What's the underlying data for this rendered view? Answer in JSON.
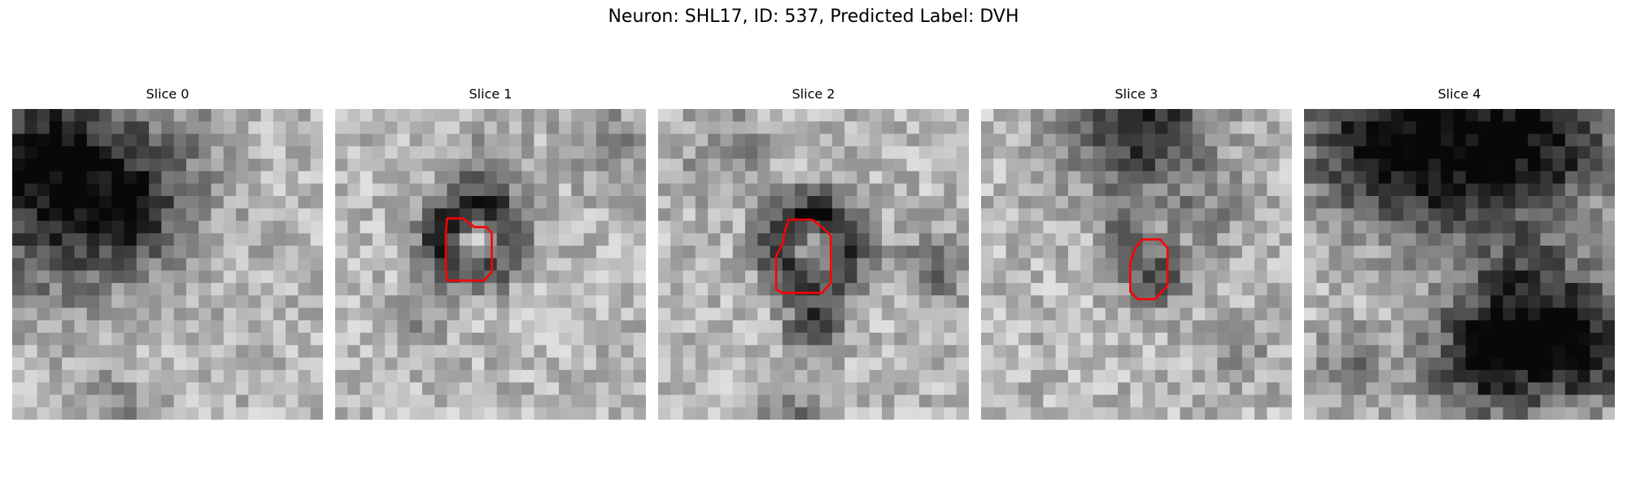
{
  "figure": {
    "title": "Neuron: SHL17, ID: 537, Predicted Label: DVH"
  },
  "grid_size": 25,
  "contour_color": "#ff0000",
  "panels": [
    {
      "title": "Slice 0",
      "blobs": [
        {
          "cx": 4,
          "cy": 7,
          "r": 5.5,
          "amp": -0.55
        },
        {
          "cx": 9,
          "cy": 8,
          "r": 2.0,
          "amp": -0.35
        },
        {
          "cx": 2,
          "cy": 2,
          "r": 4.0,
          "amp": -0.35
        },
        {
          "cx": 12,
          "cy": 4,
          "r": 4.0,
          "amp": -0.15
        },
        {
          "cx": 8,
          "cy": 24,
          "r": 2.0,
          "amp": -0.2
        }
      ],
      "contour": null
    },
    {
      "title": "Slice 1",
      "blobs": [
        {
          "cx": 10.5,
          "cy": 10.0,
          "r": 4.2,
          "amp": -0.6,
          "ring": true
        },
        {
          "cx": 11,
          "cy": 10.5,
          "r": 1.6,
          "amp": 0.35
        },
        {
          "cx": 12,
          "cy": 4.5,
          "r": 2.2,
          "amp": -0.2
        },
        {
          "cx": 21,
          "cy": 2.5,
          "r": 2.0,
          "amp": -0.25
        },
        {
          "cx": 6,
          "cy": 17,
          "r": 1.5,
          "amp": -0.2
        }
      ],
      "contour": [
        [
          9.0,
          8.8
        ],
        [
          10.3,
          8.8
        ],
        [
          11.2,
          9.5
        ],
        [
          12.2,
          9.5
        ],
        [
          12.6,
          10.0
        ],
        [
          12.6,
          13.1
        ],
        [
          12.0,
          13.8
        ],
        [
          10.0,
          13.8
        ],
        [
          9.0,
          13.8
        ],
        [
          8.9,
          12.8
        ],
        [
          8.9,
          10.1
        ]
      ]
    },
    {
      "title": "Slice 2",
      "blobs": [
        {
          "cx": 12,
          "cy": 10.5,
          "r": 4.5,
          "amp": -0.6,
          "ring": true
        },
        {
          "cx": 12,
          "cy": 11.5,
          "r": 1.7,
          "amp": 0.3
        },
        {
          "cx": 12,
          "cy": 17.0,
          "r": 1.5,
          "amp": -0.5
        },
        {
          "cx": 22,
          "cy": 12,
          "r": 2.0,
          "amp": -0.3
        },
        {
          "cx": 5,
          "cy": 3,
          "r": 2.5,
          "amp": -0.2
        },
        {
          "cx": 10,
          "cy": 24,
          "r": 2.0,
          "amp": -0.25
        }
      ],
      "contour": [
        [
          10.5,
          8.9
        ],
        [
          12.4,
          8.9
        ],
        [
          13.3,
          9.6
        ],
        [
          13.9,
          10.2
        ],
        [
          13.9,
          14.0
        ],
        [
          13.2,
          14.8
        ],
        [
          10.0,
          14.8
        ],
        [
          9.5,
          14.5
        ],
        [
          9.5,
          11.8
        ],
        [
          10.1,
          10.7
        ],
        [
          10.1,
          10.2
        ]
      ]
    },
    {
      "title": "Slice 3",
      "blobs": [
        {
          "cx": 12,
          "cy": 0.5,
          "r": 4.0,
          "amp": -0.6
        },
        {
          "cx": 13.5,
          "cy": 13.0,
          "r": 1.8,
          "amp": -0.45
        },
        {
          "cx": 11,
          "cy": 9.5,
          "r": 1.2,
          "amp": -0.3
        },
        {
          "cx": 18,
          "cy": 8,
          "r": 2.5,
          "amp": -0.15
        },
        {
          "cx": 20,
          "cy": 19,
          "r": 2.0,
          "amp": -0.15
        }
      ],
      "contour": [
        [
          13.0,
          10.5
        ],
        [
          13.7,
          10.5
        ],
        [
          14.4,
          10.5
        ],
        [
          15.0,
          11.2
        ],
        [
          15.0,
          14.2
        ],
        [
          14.0,
          15.3
        ],
        [
          12.6,
          15.3
        ],
        [
          12.0,
          14.7
        ],
        [
          12.0,
          12.3
        ],
        [
          12.4,
          11.2
        ]
      ]
    },
    {
      "title": "Slice 4",
      "blobs": [
        {
          "cx": 12,
          "cy": 2.5,
          "r": 5.5,
          "amp": -0.65
        },
        {
          "cx": 4,
          "cy": 2.0,
          "r": 4.0,
          "amp": -0.4
        },
        {
          "cx": 20,
          "cy": 1.5,
          "r": 4.0,
          "amp": -0.4
        },
        {
          "cx": 18.5,
          "cy": 16.5,
          "r": 4.0,
          "amp": -0.6
        },
        {
          "cx": 14,
          "cy": 20.0,
          "r": 3.5,
          "amp": -0.45
        },
        {
          "cx": 22.5,
          "cy": 19.5,
          "r": 2.5,
          "amp": -0.4
        },
        {
          "cx": 3,
          "cy": 20.0,
          "r": 2.0,
          "amp": -0.25
        }
      ],
      "contour": null
    }
  ]
}
